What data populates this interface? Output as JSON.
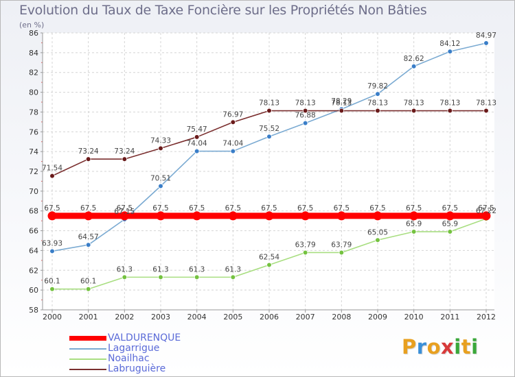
{
  "header": {
    "title": "Evolution du Taux de Taxe Foncière sur les Propriétés Non Bâties",
    "unit": "(en %)"
  },
  "logo": {
    "text": "Proxiti",
    "letters": [
      "P",
      "r",
      "o",
      "x",
      "i",
      "t",
      "i"
    ],
    "colors": [
      "#e8a020",
      "#3a8fd8",
      "#e8a020",
      "#d83a3a",
      "#3aa83a",
      "#e8a020",
      "#3aa83a"
    ]
  },
  "chart_data": {
    "type": "line",
    "title": "Evolution du Taux de Taxe Foncière sur les Propriétés Non Bâties",
    "ylabel": "(en %)",
    "xlabel": "",
    "x": [
      "2000",
      "2001",
      "2002",
      "2003",
      "2004",
      "2005",
      "2006",
      "2007",
      "2008",
      "2009",
      "2010",
      "2011",
      "2012"
    ],
    "ylim": [
      58,
      86
    ],
    "yticks": [
      58,
      60,
      62,
      64,
      66,
      68,
      70,
      72,
      74,
      76,
      78,
      80,
      82,
      84,
      86
    ],
    "grid": "horizontal dashed",
    "legend_position": "bottom-left",
    "series": [
      {
        "name": "VALDURENQUE",
        "color": "#ff0000",
        "style": "thick",
        "values": [
          67.5,
          67.5,
          67.5,
          67.5,
          67.5,
          67.5,
          67.5,
          67.5,
          67.5,
          67.5,
          67.5,
          67.5,
          67.5
        ],
        "labels": [
          "67.5",
          "67.5",
          "67.5",
          "67.5",
          "67.5",
          "67.5",
          "67.5",
          "67.5",
          "67.5",
          "67.5",
          "67.5",
          "67.5",
          "67.5"
        ]
      },
      {
        "name": "Lagarrigue",
        "color": "#7aaad2",
        "marker": "#3a7ec8",
        "values": [
          63.93,
          64.57,
          67.15,
          70.51,
          74.04,
          74.04,
          75.52,
          76.88,
          78.29,
          79.82,
          82.62,
          84.12,
          84.97
        ],
        "labels": [
          "63.93",
          "64.57",
          "67.15",
          "70.51",
          "74.04",
          "74.04",
          "75.52",
          "76.88",
          "78.29",
          "79.82",
          "82.62",
          "84.12",
          "84.97"
        ]
      },
      {
        "name": "Noailhac",
        "color": "#a8de80",
        "marker": "#74c240",
        "values": [
          60.1,
          60.1,
          61.3,
          61.3,
          61.3,
          61.3,
          62.54,
          63.79,
          63.79,
          65.05,
          65.9,
          65.9,
          67.22
        ],
        "labels": [
          "60.1",
          "60.1",
          "61.3",
          "61.3",
          "61.3",
          "61.3",
          "62.54",
          "63.79",
          "63.79",
          "65.05",
          "65.9",
          "65.9",
          "67.22"
        ]
      },
      {
        "name": "Labruguière",
        "color": "#7a2e2e",
        "marker": "#6a1a1a",
        "values": [
          71.54,
          73.24,
          73.24,
          74.33,
          75.47,
          76.97,
          78.13,
          78.13,
          78.13,
          78.13,
          78.13,
          78.13,
          78.13
        ],
        "labels": [
          "71.54",
          "73.24",
          "73.24",
          "74.33",
          "75.47",
          "76.97",
          "78.13",
          "78.13",
          "78.13",
          "78.13",
          "78.13",
          "78.13",
          "78.13"
        ]
      }
    ]
  }
}
